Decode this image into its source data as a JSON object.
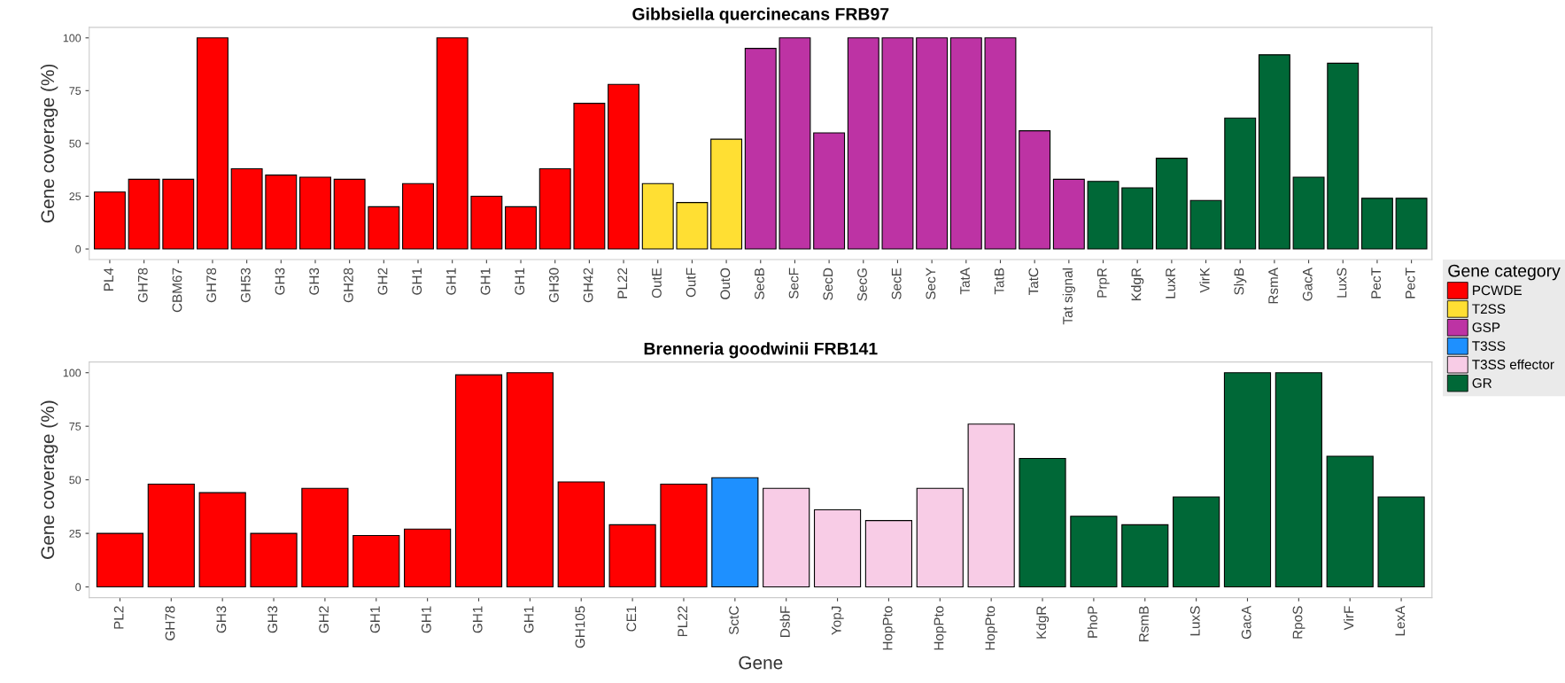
{
  "chart_data": [
    {
      "type": "bar",
      "title": "Gibbsiella quercinecans FRB97",
      "ylabel": "Gene coverage (%)",
      "ylim": [
        -5,
        105
      ],
      "yticks": [
        0,
        25,
        50,
        75,
        100
      ],
      "grid": false,
      "legend": "right",
      "legend_title": "Gene category",
      "tick_labels": "y",
      "categories": [
        "PL4",
        "GH78",
        "CBM67",
        "GH78",
        "GH53",
        "GH3",
        "GH3",
        "GH28",
        "GH2",
        "GH1",
        "GH1",
        "GH1",
        "GH1",
        "GH30",
        "GH42",
        "PL22",
        "OutE",
        "OutF",
        "OutO",
        "SecB",
        "SecF",
        "SecD",
        "SecG",
        "SecE",
        "SecY",
        "TatA",
        "TatB",
        "TatC",
        "Tat signal",
        "PrpR",
        "KdgR",
        "LuxR",
        "VirK",
        "SlyB",
        "RsmA",
        "GacA",
        "LuxS",
        "PecT",
        "PecT"
      ],
      "series": [
        {
          "name": "PCWDE",
          "color": "#ff0000",
          "values": [
            27,
            33,
            33,
            100,
            38,
            35,
            34,
            33,
            20,
            31,
            100,
            25,
            20,
            38,
            69,
            78,
            null,
            null,
            null,
            null,
            null,
            null,
            null,
            null,
            null,
            null,
            null,
            null,
            null,
            null,
            null,
            null,
            null,
            null,
            null,
            null,
            null,
            null,
            null
          ]
        },
        {
          "name": "T2SS",
          "color": "#ffdf33",
          "values": [
            null,
            null,
            null,
            null,
            null,
            null,
            null,
            null,
            null,
            null,
            null,
            null,
            null,
            null,
            null,
            null,
            31,
            22,
            52,
            null,
            null,
            null,
            null,
            null,
            null,
            null,
            null,
            null,
            null,
            null,
            null,
            null,
            null,
            null,
            null,
            null,
            null,
            null,
            null
          ]
        },
        {
          "name": "GSP",
          "color": "#bd33a4",
          "values": [
            null,
            null,
            null,
            null,
            null,
            null,
            null,
            null,
            null,
            null,
            null,
            null,
            null,
            null,
            null,
            null,
            null,
            null,
            null,
            95,
            100,
            55,
            100,
            100,
            100,
            100,
            100,
            56,
            33,
            null,
            null,
            null,
            null,
            null,
            null,
            null,
            null,
            null,
            null
          ]
        },
        {
          "name": "GR",
          "color": "#006837",
          "values": [
            null,
            null,
            null,
            null,
            null,
            null,
            null,
            null,
            null,
            null,
            null,
            null,
            null,
            null,
            null,
            null,
            null,
            null,
            null,
            null,
            null,
            null,
            null,
            null,
            null,
            null,
            null,
            null,
            null,
            32,
            29,
            43,
            23,
            62,
            92,
            34,
            88,
            24,
            24
          ]
        }
      ]
    },
    {
      "type": "bar",
      "title": "Brenneria goodwinii FRB141",
      "ylabel": "Gene coverage (%)",
      "xlabel": "Gene",
      "ylim": [
        -5,
        105
      ],
      "yticks": [
        0,
        25,
        50,
        75,
        100
      ],
      "grid": false,
      "legend": "right",
      "tick_labels": "y",
      "categories": [
        "PL2",
        "GH78",
        "GH3",
        "GH3",
        "GH2",
        "GH1",
        "GH1",
        "GH1",
        "GH1",
        "GH105",
        "CE1",
        "PL22",
        "SctC",
        "DsbF",
        "YopJ",
        "HopPto",
        "HopPto",
        "HopPto",
        "KdgR",
        "PhoP",
        "RsmB",
        "LuxS",
        "GacA",
        "RpoS",
        "VirF",
        "LexA"
      ],
      "series": [
        {
          "name": "PCWDE",
          "color": "#ff0000",
          "values": [
            25,
            48,
            44,
            25,
            46,
            24,
            27,
            99,
            100,
            49,
            29,
            48,
            null,
            null,
            null,
            null,
            null,
            null,
            null,
            null,
            null,
            null,
            null,
            null,
            null,
            null
          ]
        },
        {
          "name": "T3SS",
          "color": "#1e90ff",
          "values": [
            null,
            null,
            null,
            null,
            null,
            null,
            null,
            null,
            null,
            null,
            null,
            null,
            51,
            null,
            null,
            null,
            null,
            null,
            null,
            null,
            null,
            null,
            null,
            null,
            null,
            null
          ]
        },
        {
          "name": "T3SS effector",
          "color": "#f8cce6",
          "values": [
            null,
            null,
            null,
            null,
            null,
            null,
            null,
            null,
            null,
            null,
            null,
            null,
            null,
            46,
            36,
            31,
            46,
            76,
            null,
            null,
            null,
            null,
            null,
            null,
            null,
            null
          ]
        },
        {
          "name": "GR",
          "color": "#006837",
          "values": [
            null,
            null,
            null,
            null,
            null,
            null,
            null,
            null,
            null,
            null,
            null,
            null,
            null,
            null,
            null,
            null,
            null,
            null,
            60,
            33,
            29,
            42,
            100,
            100,
            61,
            42
          ]
        }
      ]
    }
  ]
}
